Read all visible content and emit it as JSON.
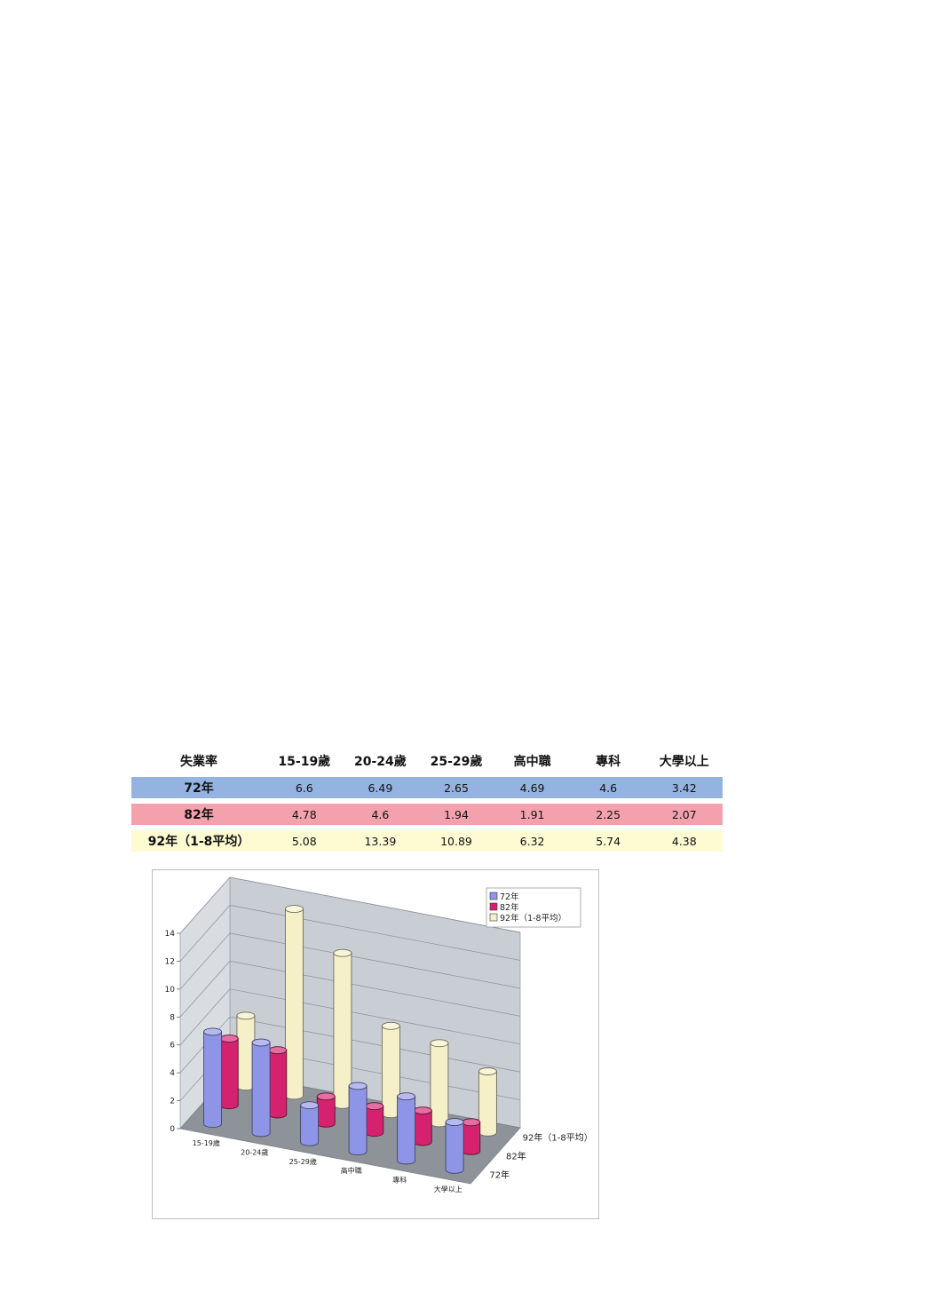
{
  "table": {
    "header": [
      "失業率",
      "15-19歲",
      "20-24歲",
      "25-29歲",
      "高中職",
      "專科",
      "大學以上"
    ],
    "rows": [
      {
        "label": "72年",
        "color": "#95b3e0",
        "values": [
          "6.6",
          "6.49",
          "2.65",
          "4.69",
          "4.6",
          "3.42"
        ]
      },
      {
        "label": "82年",
        "color": "#f3a2ad",
        "values": [
          "4.78",
          "4.6",
          "1.94",
          "1.91",
          "2.25",
          "2.07"
        ]
      },
      {
        "label": "92年（1-8平均）",
        "color": "#fefad2",
        "values": [
          "5.08",
          "13.39",
          "10.89",
          "6.32",
          "5.74",
          "4.38"
        ]
      }
    ]
  },
  "chart_data": {
    "type": "bar",
    "variant": "3d-cylinder",
    "title": "",
    "categories": [
      "15-19歲",
      "20-24歲",
      "25-29歲",
      "高中職",
      "專科",
      "大學以上"
    ],
    "series": [
      {
        "name": "72年",
        "color": "#8f95e6",
        "values": [
          6.6,
          6.49,
          2.65,
          4.69,
          4.6,
          3.42
        ]
      },
      {
        "name": "82年",
        "color": "#d4226f",
        "values": [
          4.78,
          4.6,
          1.94,
          1.91,
          2.25,
          2.07
        ]
      },
      {
        "name": "92年（1-8平均）",
        "color": "#f5f0c8",
        "values": [
          5.08,
          13.39,
          10.89,
          6.32,
          5.74,
          4.38
        ]
      }
    ],
    "depth_labels": [
      "72年",
      "82年",
      "92年（1-8平均）"
    ],
    "yticks": [
      0,
      2,
      4,
      6,
      8,
      10,
      12,
      14
    ],
    "ylim": [
      0,
      14
    ],
    "legend": "top-right",
    "grid": true
  }
}
